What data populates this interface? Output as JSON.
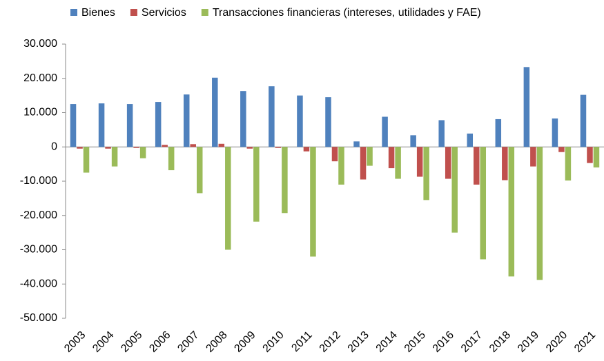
{
  "chart_data": {
    "type": "bar",
    "categories": [
      "2003",
      "2004",
      "2005",
      "2006",
      "2007",
      "2008",
      "2009",
      "2010",
      "2011",
      "2012",
      "2013",
      "2014",
      "2015",
      "2016",
      "2017",
      "2018",
      "2019",
      "2020",
      "2021"
    ],
    "series": [
      {
        "name": "Bienes",
        "color": "#4f81bd",
        "values": [
          12500,
          12700,
          12500,
          13100,
          15300,
          20200,
          16300,
          17700,
          15000,
          14500,
          1600,
          8800,
          3400,
          7800,
          3900,
          8100,
          23300,
          8300,
          15200
        ]
      },
      {
        "name": "Servicios",
        "color": "#c0504d",
        "values": [
          -500,
          -500,
          -300,
          600,
          800,
          900,
          -500,
          -300,
          -1300,
          -4200,
          -9500,
          -6200,
          -8700,
          -9300,
          -11000,
          -9700,
          -5700,
          -1500,
          -4700
        ]
      },
      {
        "name": "Transacciones financieras (intereses, utilidades y FAE)",
        "color": "#9bbb59",
        "values": [
          -7500,
          -5700,
          -3300,
          -6800,
          -13500,
          -30000,
          -21800,
          -19300,
          -32000,
          -11000,
          -5500,
          -9300,
          -15500,
          -25000,
          -32800,
          -37800,
          -38800,
          -9800,
          -6000
        ]
      }
    ],
    "ylim": [
      -50000,
      30000
    ],
    "yticks": [
      {
        "value": -50000,
        "label": "-50.000"
      },
      {
        "value": -40000,
        "label": "-40.000"
      },
      {
        "value": -30000,
        "label": "-30.000"
      },
      {
        "value": -20000,
        "label": "-20.000"
      },
      {
        "value": -10000,
        "label": "-10.000"
      },
      0,
      {
        "value": 10000,
        "label": "10.000"
      },
      {
        "value": 20000,
        "label": "20.000"
      },
      {
        "value": 30000,
        "label": "30.000"
      }
    ],
    "grid": false,
    "legend": "top"
  }
}
